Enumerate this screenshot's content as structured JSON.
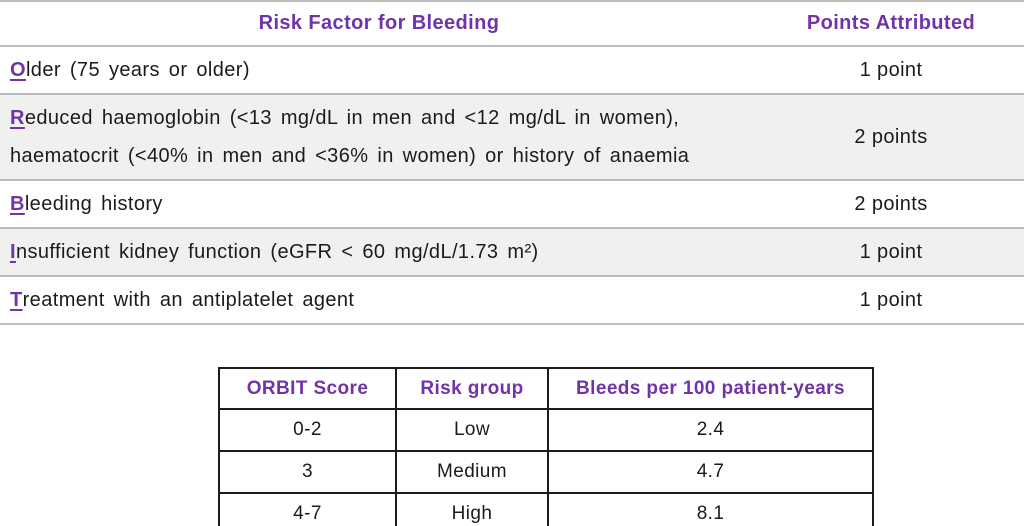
{
  "colors": {
    "accent_purple": "#7133a8",
    "row_alt_background": "#f0f0ef",
    "divider_gray": "#bdbdbd",
    "table_border_black": "#1c1c1c",
    "text": "#1b1b1b"
  },
  "risk_table": {
    "headers": {
      "factor": "Risk Factor for Bleeding",
      "points": "Points Attributed"
    },
    "rows": [
      {
        "lead": "O",
        "rest": "lder (75 years or older)",
        "points": "1 point"
      },
      {
        "lead": "R",
        "rest": "educed haemoglobin (<13 mg/dL in men and <12 mg/dL in women), haematocrit (<40% in men and <36% in women) or history of anaemia",
        "points": "2 points"
      },
      {
        "lead": "B",
        "rest": "leeding history",
        "points": "2 points"
      },
      {
        "lead": "I",
        "rest": "nsufficient kidney function (eGFR < 60 mg/dL/1.73 m²)",
        "points": "1 point"
      },
      {
        "lead": "T",
        "rest": "reatment with an antiplatelet agent",
        "points": "1 point"
      }
    ]
  },
  "score_table": {
    "headers": [
      "ORBIT Score",
      "Risk group",
      "Bleeds per 100 patient-years"
    ],
    "rows": [
      [
        "0-2",
        "Low",
        "2.4"
      ],
      [
        "3",
        "Medium",
        "4.7"
      ],
      [
        "4-7",
        "High",
        "8.1"
      ]
    ]
  }
}
